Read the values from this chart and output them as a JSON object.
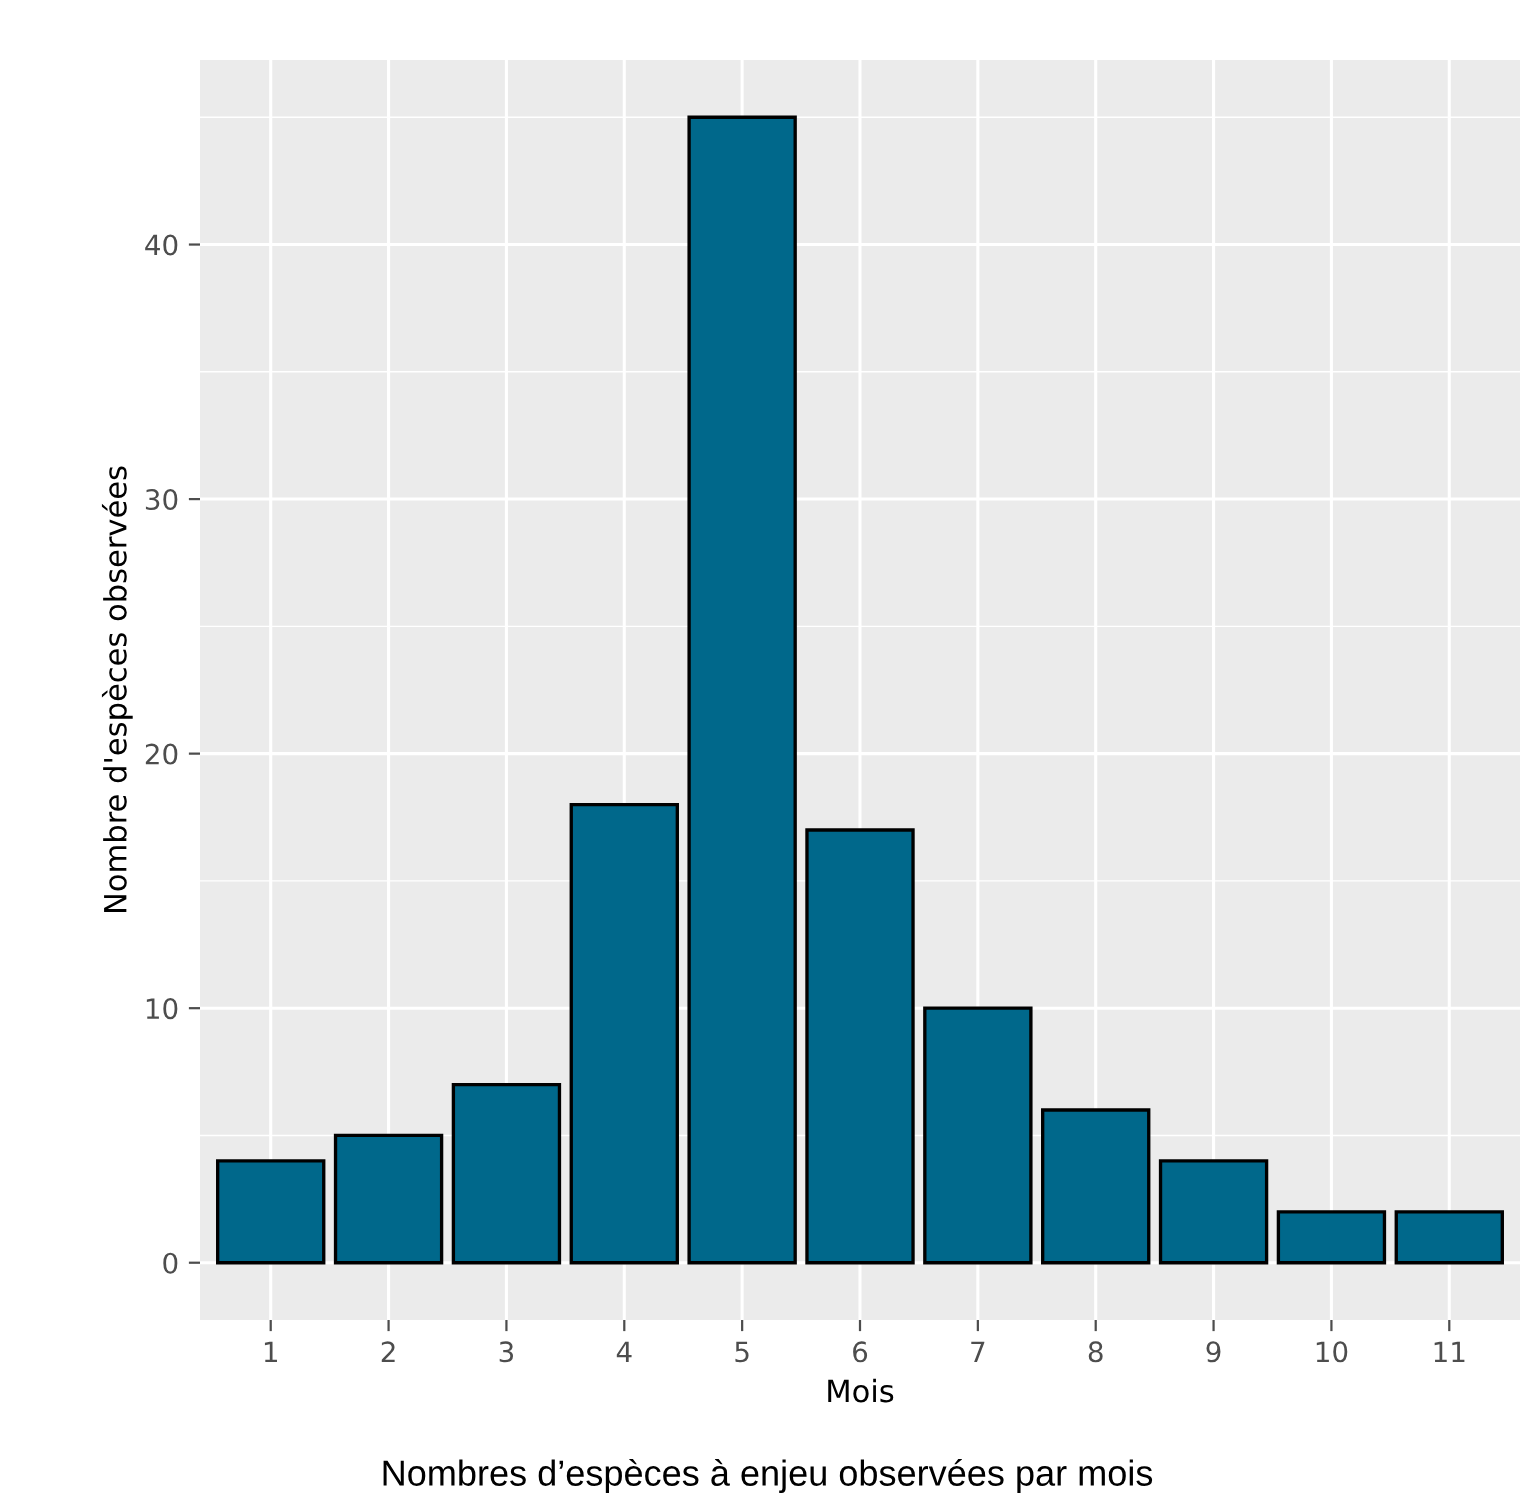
{
  "chart_data": {
    "type": "bar",
    "xlabel": "Mois",
    "ylabel": "Nombre d'espèces observées",
    "categories": [
      "1",
      "2",
      "3",
      "4",
      "5",
      "6",
      "7",
      "8",
      "9",
      "10",
      "11"
    ],
    "values": [
      4,
      5,
      7,
      18,
      45,
      17,
      10,
      6,
      4,
      2,
      2
    ],
    "color": "#00688b",
    "ylim": [
      -2.25,
      47.25
    ],
    "yticks": [
      0,
      10,
      20,
      30,
      40
    ],
    "grid": true,
    "annotations": [
      "Nombres d’espèces à enjeu observées par mois"
    ]
  }
}
